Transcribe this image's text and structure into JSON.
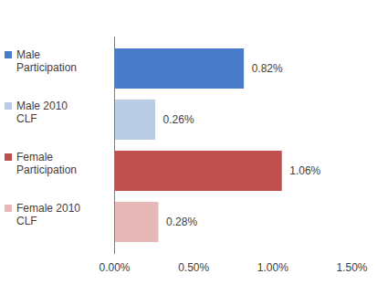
{
  "chart_data": {
    "type": "bar",
    "orientation": "horizontal",
    "categories": [
      "Male Participation",
      "Male 2010 CLF",
      "Female Participation",
      "Female 2010 CLF"
    ],
    "values": [
      0.82,
      0.26,
      1.06,
      0.28
    ],
    "value_labels": [
      "0.82%",
      "0.26%",
      "1.06%",
      "0.28%"
    ],
    "colors": [
      "#4a7bcb",
      "#b9cde5",
      "#c0504d",
      "#e6b9b8"
    ],
    "xlim": [
      0,
      1.5
    ],
    "xticks": [
      {
        "value": 0,
        "label": "0.00%"
      },
      {
        "value": 0.5,
        "label": "0.50%"
      },
      {
        "value": 1,
        "label": "1.00%"
      },
      {
        "value": 1.5,
        "label": "1.50%"
      }
    ],
    "data_labels": true,
    "legend": "left",
    "grid": false
  }
}
